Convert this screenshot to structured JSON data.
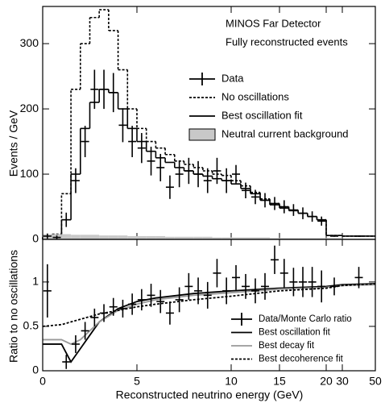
{
  "chart_data": [
    {
      "type": "histogram",
      "ylabel": "Events / GeV",
      "annotations": [
        "MINOS Far Detector",
        "Fully reconstructed events"
      ],
      "xlim": [
        0,
        50
      ],
      "xticks": [
        0,
        5,
        10,
        15,
        20,
        30,
        50
      ],
      "ylim": [
        0,
        357
      ],
      "yticks": [
        0,
        100,
        200,
        300
      ],
      "bins": [
        0,
        0.5,
        1,
        1.5,
        2,
        2.5,
        3,
        3.5,
        4,
        4.5,
        5,
        5.5,
        6,
        6.5,
        7,
        7.5,
        8,
        8.5,
        9,
        9.5,
        10,
        11,
        12,
        13,
        14,
        15,
        16,
        17,
        18,
        19,
        20,
        30,
        50
      ],
      "series": [
        {
          "name": "Data",
          "color": "#000000",
          "points": true,
          "x": [
            0.25,
            0.75,
            1.25,
            1.75,
            2.25,
            2.75,
            3.25,
            3.75,
            4.25,
            4.75,
            5.25,
            5.75,
            6.25,
            6.75,
            7.25,
            7.75,
            8.25,
            8.75,
            9.25,
            9.75,
            10.5,
            11.5,
            12.5,
            13.5,
            14.5,
            15.5,
            16.5,
            17.5,
            18.5,
            19.5,
            25,
            40
          ],
          "values": [
            5,
            3,
            30,
            90,
            150,
            230,
            230,
            225,
            175,
            150,
            140,
            120,
            110,
            80,
            100,
            105,
            100,
            90,
            105,
            90,
            100,
            75,
            65,
            60,
            55,
            50,
            45,
            40,
            35,
            28,
            5,
            5
          ],
          "errors": [
            4,
            3,
            11,
            19,
            24,
            30,
            30,
            30,
            26,
            24,
            23,
            22,
            21,
            18,
            20,
            20,
            20,
            19,
            20,
            19,
            14,
            12,
            11,
            11,
            10,
            10,
            9,
            9,
            8,
            7,
            1,
            1
          ]
        },
        {
          "name": "No oscillations",
          "color": "#000000",
          "dash": true,
          "values": [
            5,
            8,
            70,
            230,
            300,
            340,
            352,
            320,
            260,
            200,
            170,
            150,
            140,
            130,
            120,
            115,
            110,
            105,
            100,
            98,
            90,
            82,
            72,
            62,
            55,
            50,
            45,
            40,
            35,
            30,
            6,
            5
          ]
        },
        {
          "name": "Best oscillation fit",
          "color": "#000000",
          "values": [
            3,
            5,
            30,
            100,
            170,
            210,
            230,
            225,
            200,
            170,
            150,
            135,
            125,
            118,
            110,
            105,
            100,
            97,
            93,
            90,
            85,
            78,
            70,
            60,
            53,
            48,
            44,
            40,
            35,
            30,
            6,
            5
          ]
        },
        {
          "name": "Neutral current background",
          "color": "#c8c8c8",
          "fill": true,
          "values": [
            8,
            8,
            8,
            7,
            7,
            7,
            6,
            6,
            6,
            5,
            5,
            5,
            5,
            4,
            4,
            4,
            4,
            4,
            3,
            3,
            3,
            3,
            3,
            3,
            2,
            2,
            2,
            2,
            2,
            2,
            2,
            1
          ]
        }
      ]
    },
    {
      "type": "line",
      "xlabel": "Reconstructed neutrino energy (GeV)",
      "ylabel": "Ratio to no oscillations",
      "xlim": [
        0,
        50
      ],
      "xticks": [
        0,
        5,
        10,
        15,
        20,
        30,
        50
      ],
      "ylim": [
        0,
        1.48
      ],
      "yticks": [
        0,
        0.5,
        1
      ],
      "series": [
        {
          "name": "Data/Monte Carlo ratio",
          "color": "#000000",
          "points": true,
          "x": [
            0.25,
            1.25,
            1.75,
            2.25,
            2.75,
            3.25,
            3.75,
            4.25,
            4.75,
            5.25,
            5.75,
            6.25,
            6.75,
            7.25,
            7.75,
            8.25,
            8.75,
            9.25,
            9.75,
            10.5,
            11.5,
            12.5,
            13.5,
            14.5,
            15.5,
            16.5,
            17.5,
            18.5,
            19.5,
            25,
            40
          ],
          "values": [
            0.9,
            0.1,
            0.3,
            0.45,
            0.6,
            0.65,
            0.72,
            0.7,
            0.75,
            0.8,
            0.85,
            0.78,
            0.65,
            0.8,
            0.95,
            0.9,
            0.85,
            1.1,
            0.9,
            1.05,
            0.95,
            0.9,
            0.95,
            1.25,
            1.1,
            1.0,
            1.0,
            1.0,
            0.95,
            0.95,
            1.05
          ],
          "errors": [
            0.3,
            0.08,
            0.1,
            0.1,
            0.1,
            0.1,
            0.1,
            0.1,
            0.12,
            0.12,
            0.13,
            0.13,
            0.13,
            0.14,
            0.15,
            0.15,
            0.15,
            0.16,
            0.15,
            0.14,
            0.14,
            0.14,
            0.15,
            0.16,
            0.16,
            0.16,
            0.17,
            0.17,
            0.18,
            0.1,
            0.12
          ]
        },
        {
          "name": "Best oscillation fit",
          "color": "#000000",
          "x": [
            0,
            1,
            1.5,
            2,
            2.5,
            3,
            4,
            5,
            6,
            8,
            10,
            15,
            20,
            30,
            50
          ],
          "values": [
            0.3,
            0.3,
            0.1,
            0.25,
            0.4,
            0.55,
            0.7,
            0.78,
            0.82,
            0.87,
            0.9,
            0.93,
            0.95,
            0.97,
            0.98
          ]
        },
        {
          "name": "Best decay fit",
          "color": "#999999",
          "x": [
            0,
            1,
            1.5,
            2,
            2.5,
            3,
            4,
            5,
            6,
            8,
            10,
            15,
            20,
            30,
            50
          ],
          "values": [
            0.35,
            0.35,
            0.3,
            0.35,
            0.45,
            0.55,
            0.68,
            0.75,
            0.8,
            0.85,
            0.88,
            0.92,
            0.94,
            0.96,
            0.97
          ]
        },
        {
          "name": "Best decoherence fit",
          "color": "#000000",
          "dash": true,
          "x": [
            0,
            1,
            1.5,
            2,
            2.5,
            3,
            4,
            5,
            6,
            8,
            10,
            15,
            20,
            30,
            50
          ],
          "values": [
            0.5,
            0.52,
            0.55,
            0.58,
            0.61,
            0.64,
            0.68,
            0.72,
            0.75,
            0.8,
            0.84,
            0.9,
            0.93,
            0.96,
            0.98
          ]
        }
      ]
    }
  ]
}
